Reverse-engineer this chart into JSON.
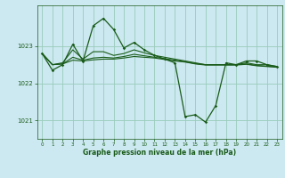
{
  "title": "Graphe pression niveau de la mer (hPa)",
  "bg_color": "#cce8f0",
  "grid_color": "#99ccbb",
  "line_color": "#1a5c1a",
  "xlim": [
    -0.5,
    23.5
  ],
  "ylim": [
    1020.5,
    1024.1
  ],
  "yticks": [
    1021,
    1022,
    1023
  ],
  "xticks": [
    0,
    1,
    2,
    3,
    4,
    5,
    6,
    7,
    8,
    9,
    10,
    11,
    12,
    13,
    14,
    15,
    16,
    17,
    18,
    19,
    20,
    21,
    22,
    23
  ],
  "main_y": [
    1022.8,
    1022.35,
    1022.5,
    1023.05,
    1022.6,
    1023.55,
    1023.75,
    1023.45,
    1022.95,
    1023.1,
    1022.9,
    1022.75,
    1022.65,
    1022.55,
    1021.1,
    1021.15,
    1020.95,
    1021.4,
    1022.55,
    1022.5,
    1022.6,
    1022.6,
    1022.5,
    1022.45
  ],
  "smooth_y1": [
    1022.8,
    1022.5,
    1022.55,
    1022.9,
    1022.65,
    1022.85,
    1022.85,
    1022.75,
    1022.8,
    1022.9,
    1022.82,
    1022.75,
    1022.7,
    1022.65,
    1022.6,
    1022.55,
    1022.5,
    1022.5,
    1022.5,
    1022.5,
    1022.55,
    1022.5,
    1022.5,
    1022.45
  ],
  "smooth_y2": [
    1022.8,
    1022.5,
    1022.52,
    1022.7,
    1022.62,
    1022.68,
    1022.7,
    1022.68,
    1022.72,
    1022.78,
    1022.74,
    1022.7,
    1022.66,
    1022.62,
    1022.58,
    1022.53,
    1022.5,
    1022.5,
    1022.5,
    1022.5,
    1022.52,
    1022.48,
    1022.46,
    1022.44
  ],
  "smooth_y3": [
    1022.8,
    1022.5,
    1022.52,
    1022.62,
    1022.6,
    1022.63,
    1022.65,
    1022.65,
    1022.68,
    1022.72,
    1022.7,
    1022.68,
    1022.64,
    1022.6,
    1022.57,
    1022.52,
    1022.49,
    1022.49,
    1022.49,
    1022.49,
    1022.51,
    1022.47,
    1022.45,
    1022.43
  ]
}
